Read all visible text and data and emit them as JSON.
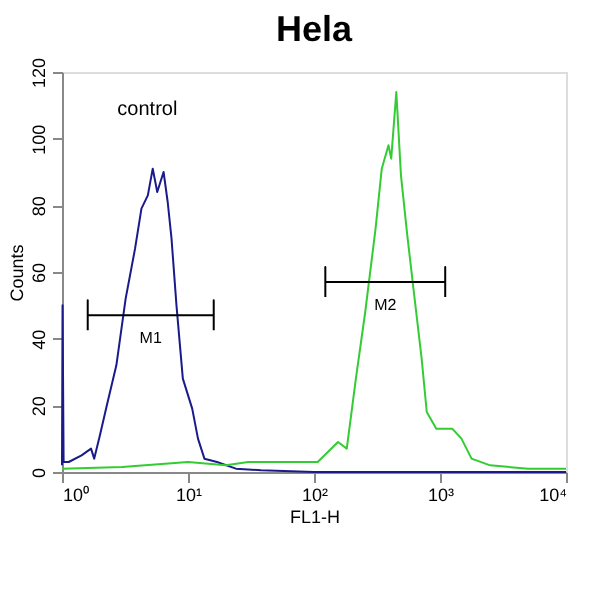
{
  "chart_data": {
    "type": "line",
    "title": "Hela",
    "xlabel": "FL1-H",
    "ylabel": "Counts",
    "log": "x",
    "xlim": [
      1,
      10000
    ],
    "xticks": [
      {
        "value": 1,
        "label": "10⁰"
      },
      {
        "value": 10,
        "label": "10¹"
      },
      {
        "value": 100,
        "label": "10²"
      },
      {
        "value": 1000,
        "label": "10³"
      },
      {
        "value": 10000,
        "label": "10⁴"
      }
    ],
    "ylim": [
      0,
      120
    ],
    "yticks": [
      0,
      20,
      40,
      60,
      80,
      100,
      120
    ],
    "series": [
      {
        "name": "control",
        "color": "#1a1a8c",
        "x": [
          1.0,
          1.01,
          1.03,
          1.13,
          1.43,
          1.7,
          1.8,
          2.0,
          2.27,
          2.7,
          3.2,
          3.8,
          4.27,
          4.8,
          5.25,
          5.7,
          6.4,
          6.9,
          7.4,
          8.1,
          9.1,
          10.8,
          12,
          13.5,
          17,
          24,
          38,
          100,
          1000,
          10000
        ],
        "values": [
          2,
          50,
          3,
          3,
          5,
          7,
          4,
          11,
          20,
          32,
          52,
          67,
          79,
          83,
          91,
          84,
          90,
          81,
          70,
          50,
          28,
          19,
          10,
          4,
          3,
          1,
          0.5,
          0,
          0,
          0
        ]
      },
      {
        "color": "#33cc33",
        "x": [
          1,
          3,
          10,
          20,
          30,
          48,
          107,
          155,
          182,
          215,
          255,
          308,
          345,
          390,
          410,
          450,
          490,
          550,
          620,
          715,
          785,
          935,
          1250,
          1480,
          1780,
          2500,
          5000,
          10000
        ],
        "values": [
          1,
          1.5,
          3,
          2,
          3,
          3,
          3,
          9,
          7,
          28,
          48,
          73,
          91,
          98,
          94,
          114,
          89,
          71,
          54,
          34,
          18,
          13,
          13,
          10,
          4,
          2,
          1,
          1
        ]
      },
      {
        "name": "M1",
        "color": "#000000",
        "x": [
          1.6,
          1.6,
          1.6,
          16,
          16,
          16
        ],
        "values": [
          42.5,
          51.5,
          47,
          47,
          51.5,
          42.5
        ]
      },
      {
        "name": "M2",
        "color": "#000000",
        "x": [
          123,
          123,
          123,
          1100,
          1100,
          1100
        ],
        "values": [
          52.5,
          61.5,
          57,
          57,
          61.5,
          52.5
        ]
      }
    ]
  }
}
